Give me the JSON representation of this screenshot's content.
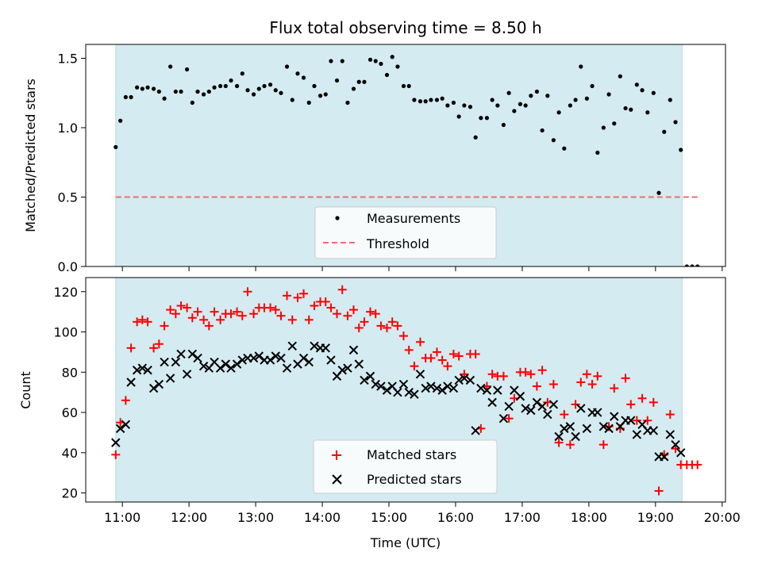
{
  "title": "Flux total observing time = 8.50 h",
  "colors": {
    "shade": "#d4ebf1",
    "shade_edge": "#b7d9e3",
    "threshold": "#f36b6b",
    "matched": "#ff0000",
    "predicted": "#000000",
    "ratio": "#000000"
  },
  "chart_data": [
    {
      "type": "scatter",
      "ylabel": "Matched/Predicted stars",
      "ylim": [
        0,
        1.6
      ],
      "yticks": [
        0.0,
        0.5,
        1.0,
        1.5
      ],
      "ytick_labels": [
        "0.0",
        "0.5",
        "1.0",
        "1.5"
      ],
      "xlim": [
        10.45,
        20.05
      ],
      "shaded_interval": [
        10.9,
        19.4
      ],
      "threshold": {
        "name": "Threshold",
        "y": 0.5,
        "x_range": [
          10.9,
          19.65
        ]
      },
      "legend": {
        "placement": "lower-center",
        "entries": [
          "Measurements",
          "Threshold"
        ]
      },
      "series": [
        {
          "name": "Measurements",
          "marker": "dot",
          "x": [
            10.9,
            10.97,
            11.05,
            11.13,
            11.22,
            11.3,
            11.38,
            11.47,
            11.55,
            11.63,
            11.72,
            11.8,
            11.88,
            11.97,
            12.05,
            12.13,
            12.22,
            12.3,
            12.38,
            12.47,
            12.55,
            12.63,
            12.72,
            12.8,
            12.88,
            12.97,
            13.05,
            13.13,
            13.22,
            13.3,
            13.38,
            13.47,
            13.55,
            13.63,
            13.72,
            13.8,
            13.88,
            13.97,
            14.05,
            14.13,
            14.22,
            14.3,
            14.38,
            14.47,
            14.55,
            14.63,
            14.72,
            14.8,
            14.88,
            14.97,
            15.05,
            15.13,
            15.22,
            15.3,
            15.38,
            15.47,
            15.55,
            15.63,
            15.72,
            15.8,
            15.88,
            15.97,
            16.05,
            16.13,
            16.22,
            16.3,
            16.38,
            16.47,
            16.55,
            16.63,
            16.72,
            16.8,
            16.88,
            16.97,
            17.05,
            17.13,
            17.22,
            17.3,
            17.38,
            17.47,
            17.55,
            17.63,
            17.72,
            17.8,
            17.88,
            17.97,
            18.05,
            18.13,
            18.22,
            18.3,
            18.38,
            18.47,
            18.55,
            18.63,
            18.72,
            18.8,
            18.88,
            18.97,
            19.05,
            19.13,
            19.22,
            19.3,
            19.38,
            19.47,
            19.55,
            19.63
          ],
          "y": [
            0.86,
            1.05,
            1.22,
            1.22,
            1.29,
            1.28,
            1.29,
            1.28,
            1.26,
            1.21,
            1.44,
            1.26,
            1.26,
            1.42,
            1.18,
            1.26,
            1.24,
            1.26,
            1.29,
            1.3,
            1.3,
            1.34,
            1.3,
            1.39,
            1.27,
            1.24,
            1.28,
            1.3,
            1.31,
            1.27,
            1.25,
            1.44,
            1.2,
            1.39,
            1.36,
            1.18,
            1.3,
            1.23,
            1.24,
            1.48,
            1.34,
            1.48,
            1.18,
            1.28,
            1.33,
            1.33,
            1.49,
            1.48,
            1.46,
            1.38,
            1.51,
            1.44,
            1.3,
            1.3,
            1.2,
            1.19,
            1.19,
            1.2,
            1.2,
            1.21,
            1.16,
            1.18,
            1.08,
            1.16,
            1.15,
            0.93,
            1.07,
            1.07,
            1.2,
            1.16,
            1.02,
            1.25,
            1.12,
            1.17,
            1.16,
            1.23,
            1.26,
            0.98,
            1.23,
            0.91,
            1.11,
            0.85,
            1.16,
            1.2,
            1.44,
            1.21,
            1.3,
            0.82,
            1.0,
            1.24,
            1.03,
            1.37,
            1.14,
            1.13,
            1.31,
            1.27,
            1.11,
            1.25,
            0.53,
            0.97,
            1.2,
            1.04,
            0.84,
            0.0,
            0.0,
            0.0
          ]
        }
      ]
    },
    {
      "type": "scatter",
      "xlabel": "Time (UTC)",
      "ylabel": "Count",
      "ylim": [
        15.5,
        127
      ],
      "yticks": [
        20,
        40,
        60,
        80,
        100,
        120
      ],
      "ytick_labels": [
        "20",
        "40",
        "60",
        "80",
        "100",
        "120"
      ],
      "xlim": [
        10.45,
        20.05
      ],
      "xticks": [
        11,
        12,
        13,
        14,
        15,
        16,
        17,
        18,
        19,
        20
      ],
      "xtick_labels": [
        "11:00",
        "12:00",
        "13:00",
        "14:00",
        "15:00",
        "16:00",
        "17:00",
        "18:00",
        "19:00",
        "20:00"
      ],
      "shaded_interval": [
        10.9,
        19.4
      ],
      "legend": {
        "placement": "lower-center",
        "entries": [
          "Matched stars",
          "Predicted stars"
        ]
      },
      "series": [
        {
          "name": "Matched stars",
          "marker": "plus",
          "x": [
            10.9,
            10.97,
            11.05,
            11.13,
            11.22,
            11.3,
            11.38,
            11.47,
            11.55,
            11.63,
            11.72,
            11.8,
            11.88,
            11.97,
            12.05,
            12.13,
            12.22,
            12.3,
            12.38,
            12.47,
            12.55,
            12.63,
            12.72,
            12.8,
            12.88,
            12.97,
            13.05,
            13.13,
            13.22,
            13.3,
            13.38,
            13.47,
            13.55,
            13.63,
            13.72,
            13.8,
            13.88,
            13.97,
            14.05,
            14.13,
            14.22,
            14.3,
            14.38,
            14.47,
            14.55,
            14.63,
            14.72,
            14.8,
            14.88,
            14.97,
            15.05,
            15.13,
            15.22,
            15.3,
            15.38,
            15.47,
            15.55,
            15.63,
            15.72,
            15.8,
            15.88,
            15.97,
            16.05,
            16.13,
            16.22,
            16.3,
            16.38,
            16.47,
            16.55,
            16.63,
            16.72,
            16.8,
            16.88,
            16.97,
            17.05,
            17.13,
            17.22,
            17.3,
            17.38,
            17.47,
            17.55,
            17.63,
            17.72,
            17.8,
            17.88,
            17.97,
            18.05,
            18.13,
            18.22,
            18.3,
            18.38,
            18.47,
            18.55,
            18.63,
            18.72,
            18.8,
            18.88,
            18.97,
            19.05,
            19.13,
            19.22,
            19.3,
            19.38,
            19.47,
            19.55,
            19.63
          ],
          "y": [
            39,
            55,
            66,
            92,
            105,
            106,
            105,
            92,
            94,
            103,
            111,
            109,
            113,
            112,
            107,
            110,
            106,
            103,
            110,
            106,
            109,
            109,
            110,
            108,
            120,
            109,
            112,
            112,
            112,
            111,
            108,
            118,
            106,
            117,
            119,
            106,
            113,
            115,
            115,
            112,
            109,
            121,
            108,
            111,
            102,
            105,
            110,
            109,
            103,
            102,
            105,
            103,
            98,
            91,
            83,
            95,
            87,
            87,
            90,
            86,
            83,
            89,
            88,
            79,
            89,
            89,
            52,
            73,
            79,
            78,
            78,
            57,
            67,
            80,
            80,
            79,
            73,
            81,
            65,
            74,
            45,
            59,
            44,
            64,
            75,
            79,
            74,
            78,
            44,
            53,
            72,
            52,
            77,
            64,
            56,
            67,
            56,
            65,
            21,
            39,
            59,
            42,
            34,
            34,
            34,
            34
          ]
        },
        {
          "name": "Predicted stars",
          "marker": "x",
          "x": [
            10.9,
            10.97,
            11.05,
            11.13,
            11.22,
            11.3,
            11.38,
            11.47,
            11.55,
            11.63,
            11.72,
            11.8,
            11.88,
            11.97,
            12.05,
            12.13,
            12.22,
            12.3,
            12.38,
            12.47,
            12.55,
            12.63,
            12.72,
            12.8,
            12.88,
            12.97,
            13.05,
            13.13,
            13.22,
            13.3,
            13.38,
            13.47,
            13.55,
            13.63,
            13.72,
            13.8,
            13.88,
            13.97,
            14.05,
            14.13,
            14.22,
            14.3,
            14.38,
            14.47,
            14.55,
            14.63,
            14.72,
            14.8,
            14.88,
            14.97,
            15.05,
            15.13,
            15.22,
            15.3,
            15.38,
            15.47,
            15.55,
            15.63,
            15.72,
            15.8,
            15.88,
            15.97,
            16.05,
            16.13,
            16.22,
            16.3,
            16.38,
            16.47,
            16.55,
            16.63,
            16.72,
            16.8,
            16.88,
            16.97,
            17.05,
            17.13,
            17.22,
            17.3,
            17.38,
            17.47,
            17.55,
            17.63,
            17.72,
            17.8,
            17.88,
            17.97,
            18.05,
            18.13,
            18.22,
            18.3,
            18.38,
            18.47,
            18.55,
            18.63,
            18.72,
            18.8,
            18.88,
            18.97,
            19.05,
            19.13,
            19.22,
            19.3,
            19.38
          ],
          "y": [
            45,
            52,
            54,
            75,
            81,
            82,
            81,
            72,
            74,
            85,
            77,
            85,
            89,
            79,
            89,
            87,
            83,
            82,
            85,
            82,
            84,
            82,
            84,
            86,
            87,
            87,
            88,
            86,
            86,
            88,
            87,
            82,
            93,
            84,
            87,
            85,
            93,
            92,
            92,
            86,
            78,
            81,
            82,
            91,
            84,
            76,
            78,
            74,
            73,
            71,
            73,
            70,
            74,
            70,
            69,
            79,
            72,
            73,
            72,
            71,
            73,
            72,
            76,
            77,
            76,
            51,
            72,
            71,
            65,
            71,
            57,
            63,
            71,
            68,
            62,
            61,
            65,
            63,
            59,
            64,
            48,
            52,
            53,
            48,
            62,
            52,
            60,
            60,
            53,
            52,
            58,
            53,
            56,
            56,
            49,
            54,
            51,
            51,
            38,
            38,
            49,
            44,
            40
          ]
        }
      ]
    }
  ]
}
